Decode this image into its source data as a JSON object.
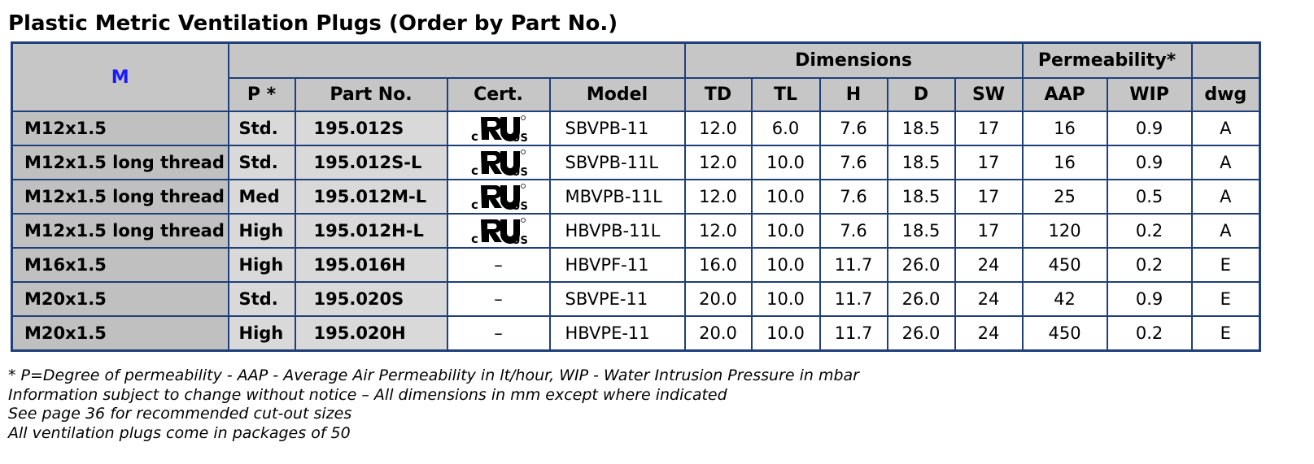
{
  "header": {
    "title": "Plastic Metric Ventilation Plugs (Order by Part No.)"
  },
  "table": {
    "corner": "M",
    "groups": {
      "dimensions": "Dimensions",
      "permeability": "Permeability*"
    },
    "columns": [
      "P *",
      "Part No.",
      "Cert.",
      "Model",
      "TD",
      "TL",
      "H",
      "D",
      "SW",
      "AAP",
      "WIP",
      "dwg"
    ],
    "rows": [
      [
        "M12x1.5",
        "Std.",
        "195.012S",
        {
          "c": "c",
          "us": "US"
        },
        "SBVPB-11",
        "12.0",
        "6.0",
        "7.6",
        "18.5",
        "17",
        "16",
        "0.9",
        "A"
      ],
      [
        "M12x1.5 long thread",
        "Std.",
        "195.012S-L",
        {
          "c": "c",
          "us": "US"
        },
        "SBVPB-11L",
        "12.0",
        "10.0",
        "7.6",
        "18.5",
        "17",
        "16",
        "0.9",
        "A"
      ],
      [
        "M12x1.5 long thread",
        "Med",
        "195.012M-L",
        {
          "c": "c",
          "us": "US"
        },
        "MBVPB-11L",
        "12.0",
        "10.0",
        "7.6",
        "18.5",
        "17",
        "25",
        "0.5",
        "A"
      ],
      [
        "M12x1.5 long thread",
        "High",
        "195.012H-L",
        {
          "c": "c",
          "us": "US"
        },
        "HBVPB-11L",
        "12.0",
        "10.0",
        "7.6",
        "18.5",
        "17",
        "120",
        "0.2",
        "A"
      ],
      [
        "M16x1.5",
        "High",
        "195.016H",
        "–",
        "HBVPF-11",
        "16.0",
        "10.0",
        "11.7",
        "26.0",
        "24",
        "450",
        "0.2",
        "E"
      ],
      [
        "M20x1.5",
        "Std.",
        "195.020S",
        "–",
        "SBVPE-11",
        "20.0",
        "10.0",
        "11.7",
        "26.0",
        "24",
        "42",
        "0.9",
        "E"
      ],
      [
        "M20x1.5",
        "High",
        "195.020H",
        "–",
        "HBVPE-11",
        "20.0",
        "10.0",
        "11.7",
        "26.0",
        "24",
        "450",
        "0.2",
        "E"
      ]
    ]
  },
  "notes": [
    "* P=Degree of permeability -  AAP - Average Air Permeability in lt/hour, WIP - Water Intrusion Pressure in mbar",
    "Information subject to change without notice – All dimensions in mm except where indicated",
    "See page 36 for recommended cut-out sizes",
    "All ventilation plugs come in packages of 50"
  ]
}
